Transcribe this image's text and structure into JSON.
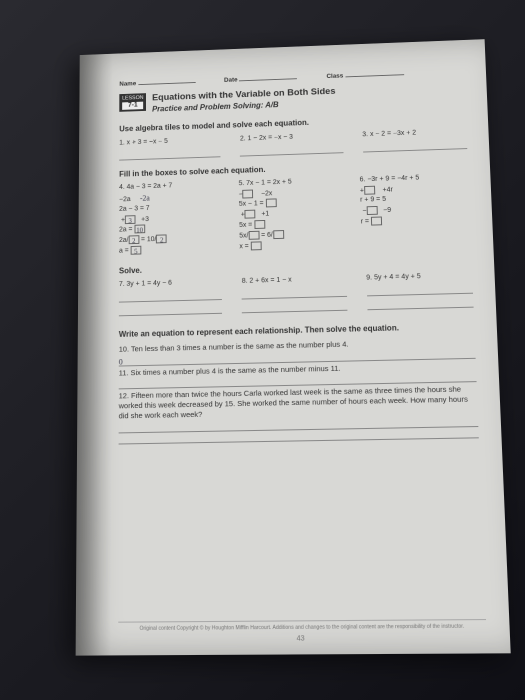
{
  "header": {
    "name_label": "Name",
    "date_label": "Date",
    "class_label": "Class"
  },
  "lesson": {
    "tag": "LESSON",
    "number": "7-1",
    "title": "Equations with the Variable on Both Sides",
    "subtitle": "Practice and Problem Solving: A/B"
  },
  "section1": {
    "heading": "Use algebra tiles to model and solve each equation.",
    "q1": "1.  x + 3 = −x − 5",
    "q2": "2.  1 − 2x = −x − 3",
    "q3": "3.  x − 2 = −3x + 2"
  },
  "section2": {
    "heading": "Fill in the boxes to solve each equation.",
    "q4": {
      "prompt": "4.  4a − 3 = 2a + 7",
      "lines": [
        "−2a        −2a",
        "2a − 3 = 7",
        "     +3    +3",
        "2a = 10",
        "2a / 2 = 10 / 2",
        "a = 5"
      ],
      "handwritten": [
        "-2a",
        "3",
        "10",
        "2",
        "2",
        "5"
      ]
    },
    "q5": {
      "prompt": "5.  7x − 1 = 2x + 5",
      "lines": [
        "−[ ]        −2x",
        "5x − 1 = [ ]",
        "   +[ ]    +1",
        "5x = [ ]",
        "5x / [ ] = 6 / [ ]",
        "x = [ ]"
      ]
    },
    "q6": {
      "prompt": "6.  −3r + 9 = −4r + 5",
      "lines": [
        "+[ ]        +4r",
        "r + 9 = 5",
        "  −[ ]    −9",
        "r = [ ]"
      ]
    }
  },
  "section3": {
    "heading": "Solve.",
    "q7": "7.  3y + 1 = 4y − 6",
    "q8": "8.  2 + 6x = 1 − x",
    "q9": "9.  5y + 4 = 4y + 5"
  },
  "section4": {
    "heading": "Write an equation to represent each relationship. Then solve the equation.",
    "q10": "10. Ten less than 3 times a number is the same as the number plus 4.",
    "q10_hand": "0",
    "q11": "11. Six times a number plus 4 is the same as the number minus 11.",
    "q12": "12. Fifteen more than twice the hours Carla worked last week is the same as three times the hours she worked this week decreased by 15. She worked the same number of hours each week. How many hours did she work each week?"
  },
  "footer": {
    "copyright": "Original content Copyright © by Houghton Mifflin Harcourt. Additions and changes to the original content are the responsibility of the instructor.",
    "page": "43"
  }
}
